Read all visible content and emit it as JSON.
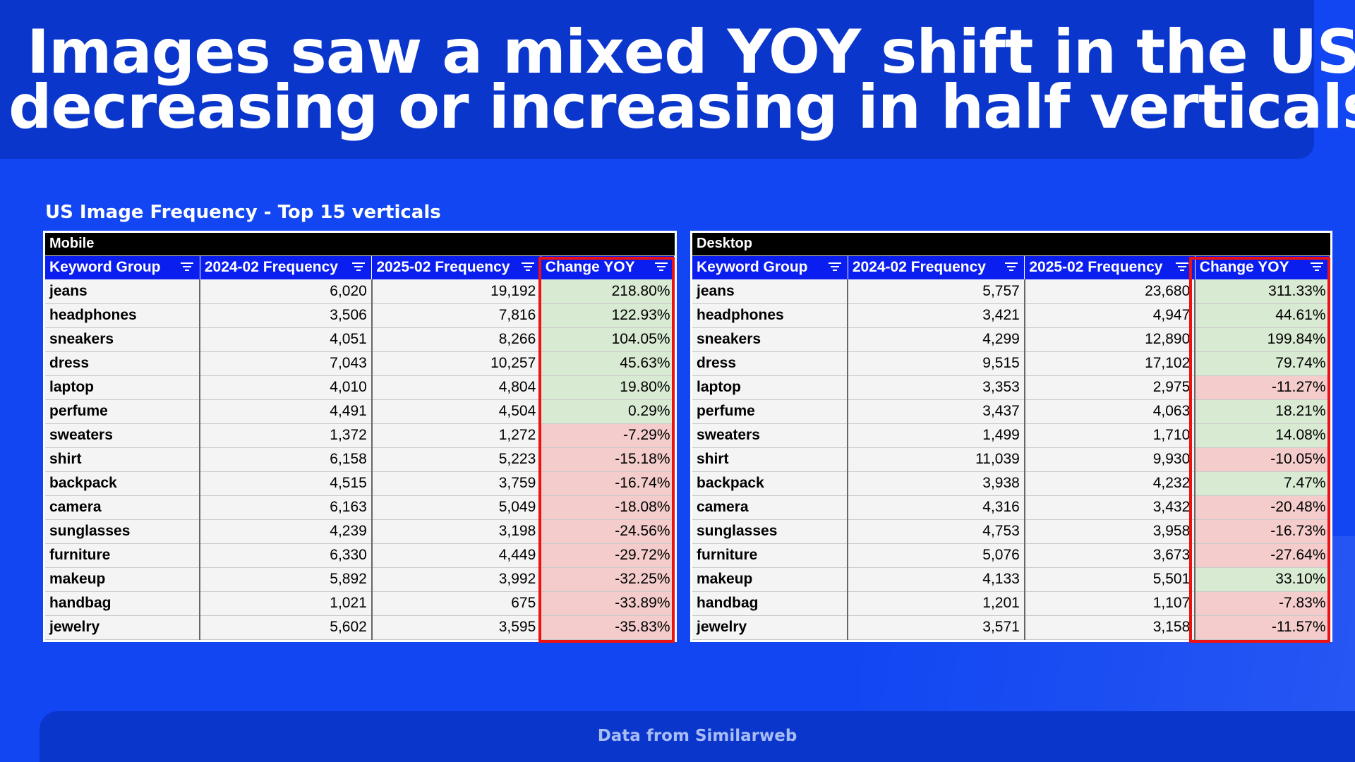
{
  "title_line1": "Images saw a mixed YOY shift in the US,",
  "title_line2": "decreasing or increasing in half verticals",
  "subtitle": "US Image Frequency - Top 15 verticals",
  "footer": "Data from Similarweb",
  "colors": {
    "background": "#1146f2",
    "header_band": "#0a36cc",
    "table_header": "#0b1ef0",
    "positive_fill": "#d9ead3",
    "negative_fill": "#f4cccc",
    "highlight_border": "#ee1111"
  },
  "columns": [
    "Keyword Group",
    "2024-02 Frequency",
    "2025-02 Frequency",
    "Change YOY"
  ],
  "filter_icon": "filter-icon",
  "mobile": {
    "label": "Mobile",
    "rows": [
      {
        "keyword": "jeans",
        "freq_2024": "6,020",
        "freq_2025": "19,192",
        "change": "218.80%",
        "trend": "pos"
      },
      {
        "keyword": "headphones",
        "freq_2024": "3,506",
        "freq_2025": "7,816",
        "change": "122.93%",
        "trend": "pos"
      },
      {
        "keyword": "sneakers",
        "freq_2024": "4,051",
        "freq_2025": "8,266",
        "change": "104.05%",
        "trend": "pos"
      },
      {
        "keyword": "dress",
        "freq_2024": "7,043",
        "freq_2025": "10,257",
        "change": "45.63%",
        "trend": "pos"
      },
      {
        "keyword": "laptop",
        "freq_2024": "4,010",
        "freq_2025": "4,804",
        "change": "19.80%",
        "trend": "pos"
      },
      {
        "keyword": "perfume",
        "freq_2024": "4,491",
        "freq_2025": "4,504",
        "change": "0.29%",
        "trend": "pos"
      },
      {
        "keyword": "sweaters",
        "freq_2024": "1,372",
        "freq_2025": "1,272",
        "change": "-7.29%",
        "trend": "neg"
      },
      {
        "keyword": "shirt",
        "freq_2024": "6,158",
        "freq_2025": "5,223",
        "change": "-15.18%",
        "trend": "neg"
      },
      {
        "keyword": "backpack",
        "freq_2024": "4,515",
        "freq_2025": "3,759",
        "change": "-16.74%",
        "trend": "neg"
      },
      {
        "keyword": "camera",
        "freq_2024": "6,163",
        "freq_2025": "5,049",
        "change": "-18.08%",
        "trend": "neg"
      },
      {
        "keyword": "sunglasses",
        "freq_2024": "4,239",
        "freq_2025": "3,198",
        "change": "-24.56%",
        "trend": "neg"
      },
      {
        "keyword": "furniture",
        "freq_2024": "6,330",
        "freq_2025": "4,449",
        "change": "-29.72%",
        "trend": "neg"
      },
      {
        "keyword": "makeup",
        "freq_2024": "5,892",
        "freq_2025": "3,992",
        "change": "-32.25%",
        "trend": "neg"
      },
      {
        "keyword": "handbag",
        "freq_2024": "1,021",
        "freq_2025": "675",
        "change": "-33.89%",
        "trend": "neg"
      },
      {
        "keyword": "jewelry",
        "freq_2024": "5,602",
        "freq_2025": "3,595",
        "change": "-35.83%",
        "trend": "neg"
      }
    ]
  },
  "desktop": {
    "label": "Desktop",
    "rows": [
      {
        "keyword": "jeans",
        "freq_2024": "5,757",
        "freq_2025": "23,680",
        "change": "311.33%",
        "trend": "pos"
      },
      {
        "keyword": "headphones",
        "freq_2024": "3,421",
        "freq_2025": "4,947",
        "change": "44.61%",
        "trend": "pos"
      },
      {
        "keyword": "sneakers",
        "freq_2024": "4,299",
        "freq_2025": "12,890",
        "change": "199.84%",
        "trend": "pos"
      },
      {
        "keyword": "dress",
        "freq_2024": "9,515",
        "freq_2025": "17,102",
        "change": "79.74%",
        "trend": "pos"
      },
      {
        "keyword": "laptop",
        "freq_2024": "3,353",
        "freq_2025": "2,975",
        "change": "-11.27%",
        "trend": "neg"
      },
      {
        "keyword": "perfume",
        "freq_2024": "3,437",
        "freq_2025": "4,063",
        "change": "18.21%",
        "trend": "pos"
      },
      {
        "keyword": "sweaters",
        "freq_2024": "1,499",
        "freq_2025": "1,710",
        "change": "14.08%",
        "trend": "pos"
      },
      {
        "keyword": "shirt",
        "freq_2024": "11,039",
        "freq_2025": "9,930",
        "change": "-10.05%",
        "trend": "neg"
      },
      {
        "keyword": "backpack",
        "freq_2024": "3,938",
        "freq_2025": "4,232",
        "change": "7.47%",
        "trend": "pos"
      },
      {
        "keyword": "camera",
        "freq_2024": "4,316",
        "freq_2025": "3,432",
        "change": "-20.48%",
        "trend": "neg"
      },
      {
        "keyword": "sunglasses",
        "freq_2024": "4,753",
        "freq_2025": "3,958",
        "change": "-16.73%",
        "trend": "neg"
      },
      {
        "keyword": "furniture",
        "freq_2024": "5,076",
        "freq_2025": "3,673",
        "change": "-27.64%",
        "trend": "neg"
      },
      {
        "keyword": "makeup",
        "freq_2024": "4,133",
        "freq_2025": "5,501",
        "change": "33.10%",
        "trend": "pos"
      },
      {
        "keyword": "handbag",
        "freq_2024": "1,201",
        "freq_2025": "1,107",
        "change": "-7.83%",
        "trend": "neg"
      },
      {
        "keyword": "jewelry",
        "freq_2024": "3,571",
        "freq_2025": "3,158",
        "change": "-11.57%",
        "trend": "neg"
      }
    ]
  }
}
